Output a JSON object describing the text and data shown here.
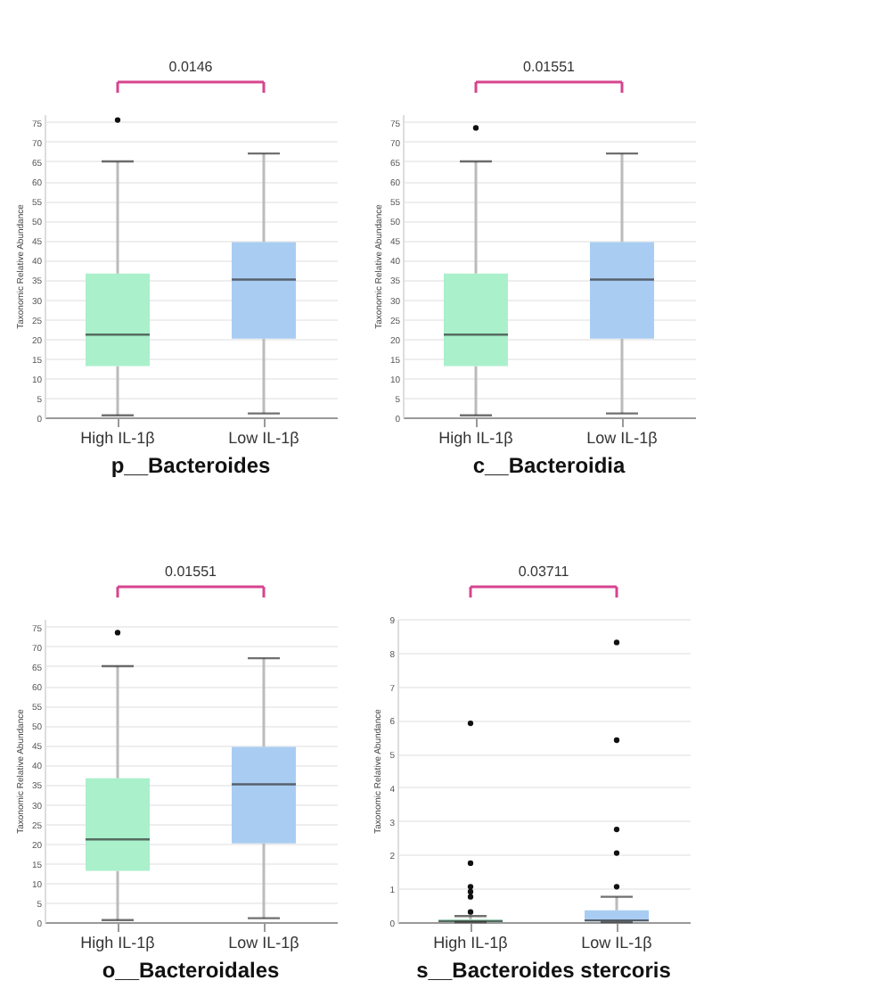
{
  "chart_data": [
    {
      "type": "box",
      "title": "p__Bacteroides",
      "ylabel": "Taxonomic Relative Abundance",
      "annotations": [
        "0.0146"
      ],
      "categories": [
        "High IL-1β",
        "Low IL-1β"
      ],
      "colors": [
        "#a9f0cb",
        "#a9cdf2"
      ],
      "ylim": [
        0,
        77
      ],
      "yticks": [
        0,
        5,
        10,
        15,
        20,
        25,
        30,
        35,
        40,
        45,
        50,
        55,
        60,
        65,
        70,
        75
      ],
      "grid": "y",
      "boxes": [
        {
          "low": 0.5,
          "q1": 13,
          "median": 21,
          "q3": 36.5,
          "high": 65,
          "outliers": [
            75.5
          ]
        },
        {
          "low": 1,
          "q1": 20,
          "median": 35,
          "q3": 44.5,
          "high": 67
        }
      ]
    },
    {
      "type": "box",
      "title": "c__Bacteroidia",
      "ylabel": "Taxonomic Relative Abundance",
      "annotations": [
        "0.01551"
      ],
      "categories": [
        "High IL-1β",
        "Low IL-1β"
      ],
      "colors": [
        "#a9f0cb",
        "#a9cdf2"
      ],
      "ylim": [
        0,
        77
      ],
      "yticks": [
        0,
        5,
        10,
        15,
        20,
        25,
        30,
        35,
        40,
        45,
        50,
        55,
        60,
        65,
        70,
        75
      ],
      "grid": "y",
      "boxes": [
        {
          "low": 0.5,
          "q1": 13,
          "median": 21,
          "q3": 36.5,
          "high": 65,
          "outliers": [
            73.5
          ]
        },
        {
          "low": 1,
          "q1": 20,
          "median": 35,
          "q3": 44.5,
          "high": 67
        }
      ]
    },
    {
      "type": "box",
      "title": "o__Bacteroidales",
      "ylabel": "Taxonomic Relative Abundance",
      "annotations": [
        "0.01551"
      ],
      "categories": [
        "High IL-1β",
        "Low IL-1β"
      ],
      "colors": [
        "#a9f0cb",
        "#a9cdf2"
      ],
      "ylim": [
        0,
        77
      ],
      "yticks": [
        0,
        5,
        10,
        15,
        20,
        25,
        30,
        35,
        40,
        45,
        50,
        55,
        60,
        65,
        70,
        75
      ],
      "grid": "y",
      "boxes": [
        {
          "low": 0.5,
          "q1": 13,
          "median": 21,
          "q3": 36.5,
          "high": 65,
          "outliers": [
            73.5
          ]
        },
        {
          "low": 1,
          "q1": 20,
          "median": 35,
          "q3": 44.5,
          "high": 67
        }
      ]
    },
    {
      "type": "box",
      "title": "s__Bacteroides stercoris",
      "ylabel": "Taxonomic Relative Abundance",
      "annotations": [
        "0.03711"
      ],
      "categories": [
        "High IL-1β",
        "Low IL-1β"
      ],
      "colors": [
        "#a9f0cb",
        "#a9cdf2"
      ],
      "ylim": [
        0,
        9
      ],
      "yticks": [
        0,
        1,
        2,
        3,
        4,
        5,
        6,
        7,
        8,
        9
      ],
      "grid": "y",
      "boxes": [
        {
          "low": 0,
          "q1": 0,
          "median": 0.03,
          "q3": 0.08,
          "high": 0.18,
          "outliers": [
            0.3,
            0.75,
            0.9,
            1.05,
            1.75,
            5.9
          ]
        },
        {
          "low": 0,
          "q1": 0.02,
          "median": 0.05,
          "q3": 0.35,
          "high": 0.75,
          "outliers": [
            1.05,
            2.05,
            2.75,
            5.4,
            8.3
          ]
        }
      ]
    }
  ]
}
